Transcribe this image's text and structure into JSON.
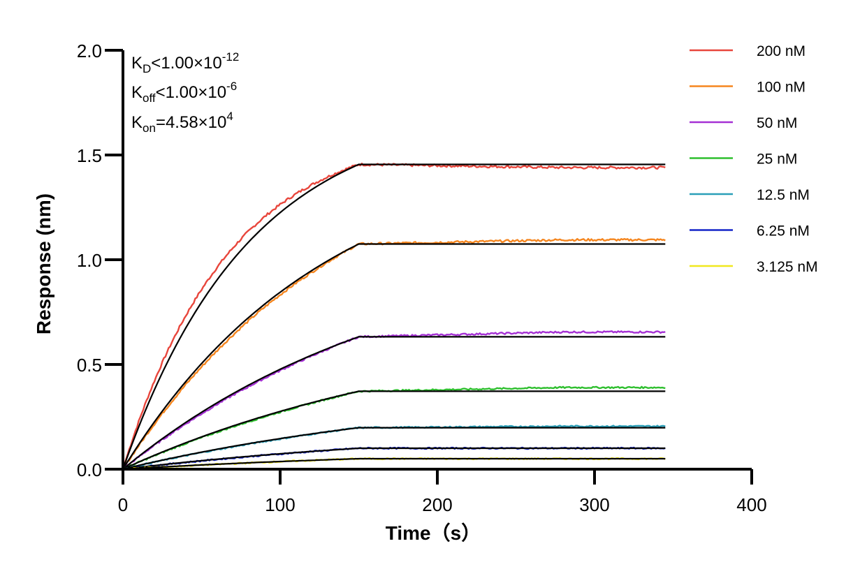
{
  "chart_data": {
    "type": "line",
    "title": "",
    "xlabel": "Time（s）",
    "ylabel": "Response (nm)",
    "xlim": [
      0,
      400
    ],
    "ylim": [
      0,
      2.0
    ],
    "x_ticks": [
      "0",
      "100",
      "200",
      "300",
      "400"
    ],
    "y_ticks": [
      "0.0",
      "0.5",
      "1.0",
      "1.5",
      "2.0"
    ],
    "grid": false,
    "legend_position": "right",
    "association_end": 150,
    "dissociation_end": 345,
    "annotations": {
      "kd": {
        "base": "K",
        "sub": "D",
        "rel": "<1.00×10",
        "sup": "-12"
      },
      "koff": {
        "base": "K",
        "sub": "off",
        "rel": "<1.00×10",
        "sup": "-6"
      },
      "kon": {
        "base": "K",
        "sub": "on",
        "rel": "=4.58×10",
        "sup": "4"
      }
    },
    "fit_color": "#000000",
    "series": [
      {
        "name": "200 nM",
        "color": "#e8463c",
        "fit_plateau": 1.455,
        "fit_k": 0.0111,
        "data_plateau_end": 1.44
      },
      {
        "name": "100 nM",
        "color": "#f5861f",
        "fit_plateau": 1.075,
        "fit_k": 0.007,
        "data_plateau_end": 1.095
      },
      {
        "name": "50 nM",
        "color": "#a531d4",
        "fit_plateau": 0.632,
        "fit_k": 0.005,
        "data_plateau_end": 0.655
      },
      {
        "name": "25 nM",
        "color": "#2fbf2f",
        "fit_plateau": 0.372,
        "fit_k": 0.0042,
        "data_plateau_end": 0.39
      },
      {
        "name": "12.5 nM",
        "color": "#2a9fb8",
        "fit_plateau": 0.198,
        "fit_k": 0.004,
        "data_plateau_end": 0.205
      },
      {
        "name": "6.25 nM",
        "color": "#1424c8",
        "fit_plateau": 0.1,
        "fit_k": 0.0038,
        "data_plateau_end": 0.1
      },
      {
        "name": "3.125 nM",
        "color": "#f0e81e",
        "fit_plateau": 0.05,
        "fit_k": 0.0036,
        "data_plateau_end": 0.05
      }
    ]
  }
}
